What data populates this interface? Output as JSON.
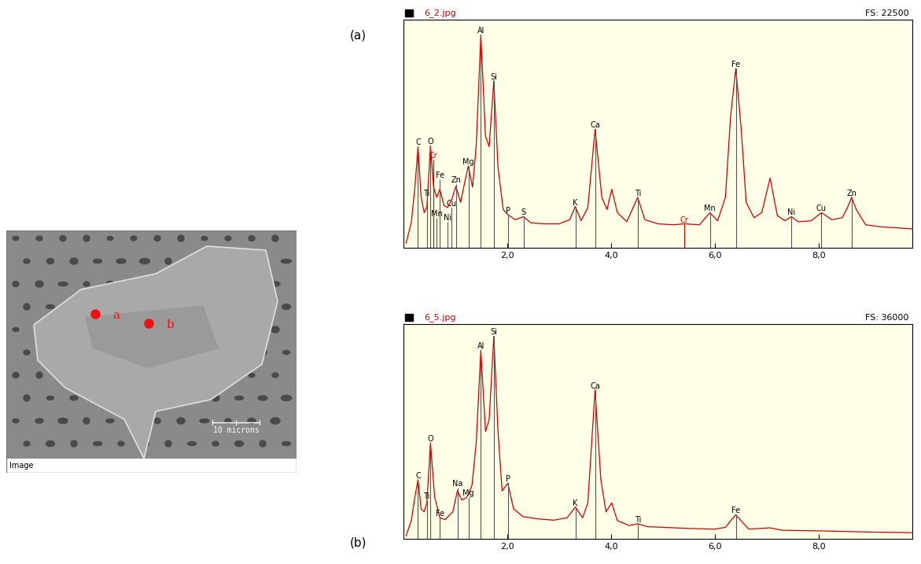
{
  "chart_data": [
    {
      "type": "line",
      "title": "6_2.jpg",
      "subtitle": "FS: 22500",
      "color": "#cc0000",
      "tick_labels": "x",
      "xlim": [
        0,
        9.8
      ],
      "ylim": [
        0,
        22500
      ],
      "xticks": [
        {
          "value": 2.0,
          "label": "2,0"
        },
        {
          "value": 4.0,
          "label": "4,0"
        },
        {
          "value": 6.0,
          "label": "6,0"
        },
        {
          "value": 8.0,
          "label": "8,0"
        }
      ],
      "x": [
        0.05,
        0.15,
        0.22,
        0.28,
        0.34,
        0.4,
        0.45,
        0.52,
        0.58,
        0.64,
        0.7,
        0.78,
        0.85,
        0.93,
        1.01,
        1.1,
        1.18,
        1.25,
        1.33,
        1.4,
        1.49,
        1.58,
        1.65,
        1.74,
        1.82,
        1.92,
        2.01,
        2.15,
        2.31,
        2.45,
        2.7,
        3.0,
        3.2,
        3.31,
        3.42,
        3.55,
        3.69,
        3.82,
        3.92,
        4.01,
        4.12,
        4.3,
        4.51,
        4.65,
        4.9,
        5.2,
        5.41,
        5.7,
        5.9,
        6.05,
        6.2,
        6.3,
        6.4,
        6.5,
        6.6,
        6.75,
        6.9,
        7.06,
        7.2,
        7.35,
        7.47,
        7.6,
        7.85,
        8.05,
        8.25,
        8.45,
        8.55,
        8.63,
        8.72,
        8.9,
        9.2,
        9.5,
        9.8
      ],
      "values": [
        500,
        2500,
        6000,
        10000,
        5000,
        3500,
        4000,
        10100,
        6000,
        5000,
        5800,
        4200,
        4000,
        4800,
        6100,
        4500,
        6500,
        8100,
        6000,
        10000,
        21000,
        11000,
        10000,
        16500,
        8000,
        3800,
        3300,
        2800,
        3100,
        2500,
        2400,
        2400,
        2800,
        4100,
        2700,
        4000,
        11700,
        5000,
        3800,
        5800,
        3500,
        2600,
        5000,
        2800,
        2400,
        2300,
        2400,
        2300,
        3500,
        2700,
        5000,
        13000,
        17700,
        12000,
        4500,
        3000,
        3500,
        6900,
        3200,
        2700,
        3100,
        2600,
        2700,
        3500,
        2800,
        3000,
        4000,
        5000,
        3800,
        2300,
        2100,
        2000,
        1900
      ],
      "annotations": [
        {
          "text": "C",
          "x": 0.28,
          "y": 10000
        },
        {
          "text": "O",
          "x": 0.52,
          "y": 10100
        },
        {
          "text": "Ti",
          "x": 0.45,
          "y": 5000
        },
        {
          "text": "Cr",
          "x": 0.57,
          "y": 8700,
          "color": "#cc0000"
        },
        {
          "text": "Mn",
          "x": 0.64,
          "y": 3000
        },
        {
          "text": "Fe",
          "x": 0.7,
          "y": 6800
        },
        {
          "text": "Ni",
          "x": 0.85,
          "y": 2600
        },
        {
          "text": "Cu",
          "x": 0.93,
          "y": 4000
        },
        {
          "text": "Zn",
          "x": 1.01,
          "y": 6300
        },
        {
          "text": "Mg",
          "x": 1.25,
          "y": 8100
        },
        {
          "text": "Al",
          "x": 1.49,
          "y": 21000
        },
        {
          "text": "Si",
          "x": 1.74,
          "y": 16500
        },
        {
          "text": "P",
          "x": 2.01,
          "y": 3300
        },
        {
          "text": "S",
          "x": 2.31,
          "y": 3100
        },
        {
          "text": "K",
          "x": 3.31,
          "y": 4100
        },
        {
          "text": "Ca",
          "x": 3.69,
          "y": 11700
        },
        {
          "text": "Ti",
          "x": 4.51,
          "y": 5000
        },
        {
          "text": "Cr",
          "x": 5.41,
          "y": 2400,
          "color": "#cc0000"
        },
        {
          "text": "Mn",
          "x": 5.9,
          "y": 3500
        },
        {
          "text": "Fe",
          "x": 6.4,
          "y": 17700
        },
        {
          "text": "Ni",
          "x": 7.47,
          "y": 3100
        },
        {
          "text": "Cu",
          "x": 8.05,
          "y": 3500
        },
        {
          "text": "Zn",
          "x": 8.63,
          "y": 5000
        }
      ]
    },
    {
      "type": "line",
      "title": "6_5.jpg",
      "subtitle": "FS: 36000",
      "color": "#cc0000",
      "tick_labels": "x",
      "xlim": [
        0,
        9.8
      ],
      "ylim": [
        0,
        36000
      ],
      "xticks": [
        {
          "value": 2.0,
          "label": "2,0"
        },
        {
          "value": 4.0,
          "label": "4,0"
        },
        {
          "value": 6.0,
          "label": "6,0"
        },
        {
          "value": 8.0,
          "label": "8,0"
        }
      ],
      "x": [
        0.05,
        0.15,
        0.22,
        0.28,
        0.34,
        0.4,
        0.45,
        0.52,
        0.6,
        0.7,
        0.8,
        0.95,
        1.04,
        1.12,
        1.2,
        1.25,
        1.32,
        1.4,
        1.49,
        1.58,
        1.65,
        1.74,
        1.82,
        1.9,
        2.01,
        2.12,
        2.3,
        2.6,
        2.9,
        3.15,
        3.31,
        3.45,
        3.55,
        3.69,
        3.8,
        3.9,
        4.01,
        4.12,
        4.35,
        4.51,
        4.7,
        5.0,
        5.5,
        6.0,
        6.2,
        6.32,
        6.4,
        6.5,
        6.65,
        7.06,
        7.3,
        8.0,
        9.0,
        9.8
      ],
      "values": [
        500,
        3000,
        7000,
        9900,
        5000,
        4500,
        6000,
        16100,
        7000,
        3500,
        3200,
        4500,
        8100,
        6500,
        6800,
        7400,
        9000,
        16000,
        31650,
        18000,
        20000,
        34000,
        18000,
        8000,
        9300,
        5000,
        3700,
        3300,
        3100,
        3500,
        5300,
        3500,
        6000,
        25000,
        10000,
        4500,
        6000,
        3000,
        2200,
        2500,
        2000,
        1900,
        1700,
        1600,
        1900,
        3200,
        4000,
        3000,
        1600,
        1800,
        1400,
        1300,
        1100,
        1000
      ],
      "annotations": [
        {
          "text": "C",
          "x": 0.28,
          "y": 9900
        },
        {
          "text": "Ti",
          "x": 0.45,
          "y": 6500
        },
        {
          "text": "O",
          "x": 0.52,
          "y": 16100
        },
        {
          "text": "Fe",
          "x": 0.7,
          "y": 3500
        },
        {
          "text": "Na",
          "x": 1.04,
          "y": 8600
        },
        {
          "text": "Mg",
          "x": 1.25,
          "y": 7000
        },
        {
          "text": "Al",
          "x": 1.49,
          "y": 31650
        },
        {
          "text": "Si",
          "x": 1.74,
          "y": 34000
        },
        {
          "text": "P",
          "x": 2.01,
          "y": 9300
        },
        {
          "text": "K",
          "x": 3.31,
          "y": 5300
        },
        {
          "text": "Ca",
          "x": 3.69,
          "y": 25000
        },
        {
          "text": "Ti",
          "x": 4.51,
          "y": 2500
        },
        {
          "text": "Fe",
          "x": 6.4,
          "y": 4000
        }
      ]
    }
  ],
  "panel_labels": [
    "(a)",
    "(b)"
  ],
  "image": {
    "points": [
      "a",
      "b"
    ],
    "scale_bar": "10 microns",
    "caption": "Image"
  }
}
